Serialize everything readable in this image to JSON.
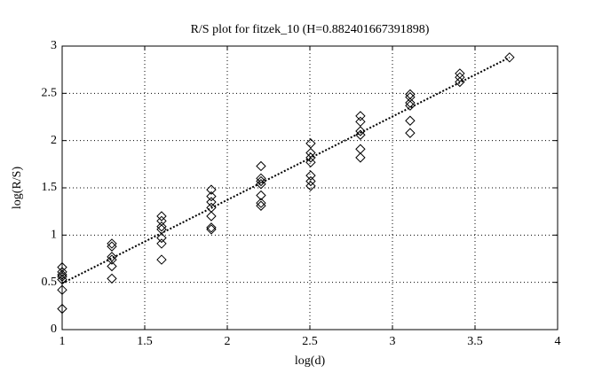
{
  "chart_data": {
    "type": "scatter",
    "title": "R/S plot for fitzek_10 (H=0.882401667391898)",
    "xlabel": "log(d)",
    "ylabel": "log(R/S)",
    "x": [
      1,
      1,
      1,
      1,
      1,
      1,
      1,
      1.301,
      1.301,
      1.301,
      1.301,
      1.301,
      1.301,
      1.602,
      1.602,
      1.602,
      1.602,
      1.602,
      1.602,
      1.602,
      1.903,
      1.903,
      1.903,
      1.903,
      1.903,
      1.903,
      1.903,
      2.204,
      2.204,
      2.204,
      2.204,
      2.204,
      2.204,
      2.204,
      2.505,
      2.505,
      2.505,
      2.505,
      2.505,
      2.505,
      2.505,
      2.806,
      2.806,
      2.806,
      2.806,
      2.806,
      2.806,
      3.107,
      3.107,
      3.107,
      3.107,
      3.107,
      3.107,
      3.408,
      3.408,
      3.408,
      3.709
    ],
    "values": [
      0.66,
      0.61,
      0.58,
      0.56,
      0.53,
      0.42,
      0.22,
      0.91,
      0.88,
      0.77,
      0.74,
      0.67,
      0.54,
      1.2,
      1.15,
      1.09,
      1.06,
      0.97,
      0.91,
      0.74,
      1.48,
      1.41,
      1.35,
      1.29,
      1.2,
      1.08,
      1.06,
      1.73,
      1.6,
      1.57,
      1.54,
      1.42,
      1.34,
      1.31,
      1.97,
      1.87,
      1.82,
      1.77,
      1.63,
      1.57,
      1.52,
      2.26,
      2.2,
      2.1,
      2.06,
      1.91,
      1.82,
      2.49,
      2.46,
      2.4,
      2.37,
      2.21,
      2.08,
      2.71,
      2.67,
      2.62,
      2.88
    ],
    "color": "#000000",
    "fit": {
      "x": [
        1,
        3.709
      ],
      "y": [
        0.49,
        2.88
      ]
    },
    "xlim": [
      1,
      4
    ],
    "xticks": [
      1,
      1.5,
      2,
      2.5,
      3,
      3.5,
      4
    ],
    "ylim": [
      0,
      3
    ],
    "yticks": [
      0,
      0.5,
      1,
      1.5,
      2,
      2.5,
      3
    ],
    "grid": true
  }
}
